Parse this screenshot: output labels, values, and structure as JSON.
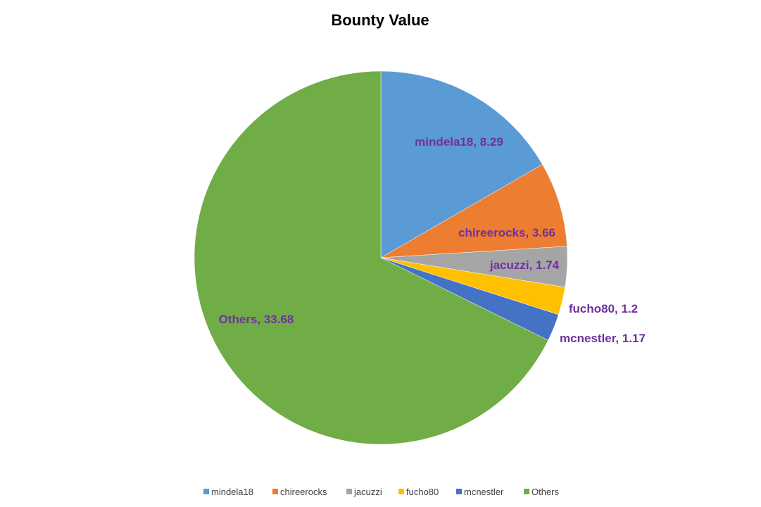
{
  "chart_data": {
    "type": "pie",
    "title": "Bounty Value",
    "categories": [
      "mindela18",
      "chireerocks",
      "jacuzzi",
      "fucho80",
      "mcnestler",
      "Others"
    ],
    "values": [
      8.29,
      3.66,
      1.74,
      1.2,
      1.17,
      33.68
    ],
    "colors": [
      "#5b9bd5",
      "#ed7d31",
      "#a5a5a5",
      "#ffc000",
      "#4472c4",
      "#70ad47"
    ],
    "data_labels": [
      "mindela18, 8.29",
      "chireerocks, 3.66",
      "jacuzzi, 1.74",
      "fucho80, 1.2",
      "mcnestler, 1.17",
      "Others, 33.68"
    ],
    "label_color": "#7030a0",
    "legend_position": "bottom"
  }
}
